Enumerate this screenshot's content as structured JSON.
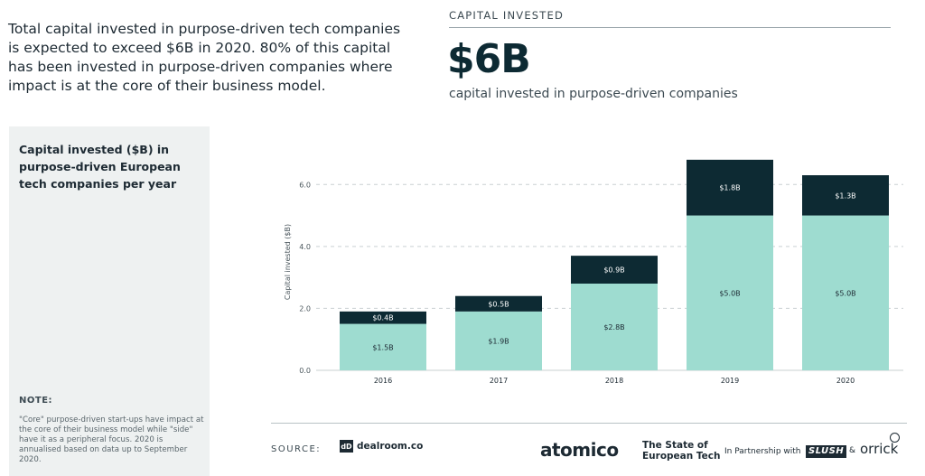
{
  "intro": {
    "text": "Total capital invested in purpose-driven tech companies is expected to exceed $6B in 2020. 80% of this capital has been invested in purpose-driven companies where impact is at the core of their business model."
  },
  "kpi": {
    "label": "CAPITAL INVESTED",
    "value": "$6B",
    "subtitle": "capital invested in purpose-driven companies"
  },
  "sidebar": {
    "title": "Capital invested ($B) in purpose-driven European tech companies per year",
    "note_label": "NOTE:",
    "note_text": "\"Core\" purpose-driven start-ups have impact at the core of their business model while \"side\" have it as a peripheral focus. 2020 is annualised based on data up to September 2020."
  },
  "colors": {
    "core": "#9edcd0",
    "side": "#0d2a33",
    "grid": "#c9d0d2",
    "text": "#1d2a33"
  },
  "chart_data": {
    "type": "bar",
    "stacked": true,
    "categories": [
      "2016",
      "2017",
      "2018",
      "2019",
      "2020"
    ],
    "series": [
      {
        "name": "Core",
        "values": [
          1.5,
          1.9,
          2.8,
          5.0,
          5.0
        ],
        "labels": [
          "$1.5B",
          "$1.9B",
          "$2.8B",
          "$5.0B",
          "$5.0B"
        ]
      },
      {
        "name": "Side",
        "values": [
          0.4,
          0.5,
          0.9,
          1.8,
          1.3
        ],
        "labels": [
          "$0.4B",
          "$0.5B",
          "$0.9B",
          "$1.8B",
          "$1.3B"
        ]
      }
    ],
    "ylabel": "Capital invested ($B)",
    "ylim": [
      0,
      7
    ],
    "yticks": [
      0,
      2,
      4,
      6
    ],
    "ytick_labels": [
      "0.0",
      "2.0",
      "4.0",
      "6.0"
    ],
    "grid": true
  },
  "footer": {
    "source_label": "SOURCE:",
    "dealroom_icon": "dD",
    "dealroom": "dealroom.co",
    "atomico": "atomico",
    "report_line1": "The State of",
    "report_line2": "European Tech",
    "partnership": "In Partnership with",
    "slush": "SLUSH",
    "amp": "&",
    "orrick": "orrick"
  }
}
